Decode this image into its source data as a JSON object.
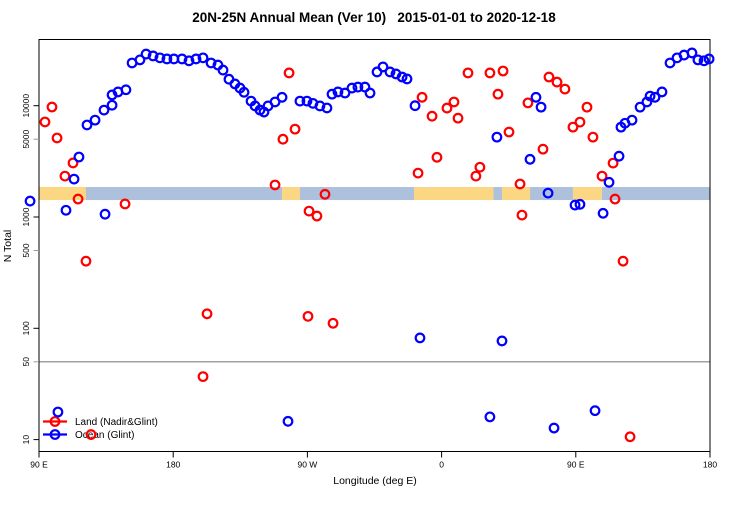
{
  "chart_data": {
    "type": "scatter",
    "title": "20N-25N Annual Mean (Ver 10)   2015-01-01 to 2020-12-18",
    "xlabel": "Longitude (deg E)",
    "ylabel": "N Total",
    "x_axis": {
      "range": [
        90,
        540
      ],
      "ticks": [
        90,
        180,
        270,
        360,
        450,
        540
      ],
      "tick_labels": [
        "90 E",
        "180",
        "90 W",
        "0",
        "90 E",
        "180"
      ]
    },
    "y_axis": {
      "scale": "log",
      "range": [
        7.5,
        39000
      ],
      "ticks": [
        10,
        50,
        100,
        500,
        1000,
        5000,
        10000
      ],
      "tick_labels": [
        "10",
        "50",
        "100",
        "500",
        "1000",
        "5000",
        "10000"
      ],
      "gray_ticks": [
        50,
        500,
        5000
      ],
      "major_tick_color": "#000000",
      "minor_tick_color": "#9a9a9a"
    },
    "grid": "off",
    "legend_position": "bottom-left",
    "ref_line": {
      "value": 50,
      "color": "#808080"
    },
    "band": {
      "value_top": 1860,
      "value_bottom": 1420,
      "orange_color": "#FBD683",
      "blue_color": "#AEC1DC",
      "segments": [
        {
          "from": 90,
          "to": 121.5,
          "color": "#FBD683"
        },
        {
          "from": 121.5,
          "to": 253,
          "color": "#AEC1DC"
        },
        {
          "from": 253,
          "to": 265,
          "color": "#FBD683"
        },
        {
          "from": 265,
          "to": 341.5,
          "color": "#AEC1DC"
        },
        {
          "from": 341.5,
          "to": 394.8,
          "color": "#FBD683"
        },
        {
          "from": 394.8,
          "to": 400.5,
          "color": "#AEC1DC"
        },
        {
          "from": 400.5,
          "to": 419.3,
          "color": "#FBD683"
        },
        {
          "from": 419.3,
          "to": 448.1,
          "color": "#AEC1DC"
        },
        {
          "from": 448.1,
          "to": 467.5,
          "color": "#FBD683"
        },
        {
          "from": 467.5,
          "to": 540,
          "color": "#AEC1DC"
        }
      ]
    },
    "series": [
      {
        "id": "land",
        "name": "Land (Nadir&Glint)",
        "color": "#FF0000",
        "marker": "open-circle",
        "points": [
          [
            98.7,
            9730
          ],
          [
            94.0,
            7140
          ],
          [
            102.1,
            5130
          ],
          [
            112.8,
            3060
          ],
          [
            107.4,
            2330
          ],
          [
            116.2,
            1450
          ],
          [
            147.7,
            1310
          ],
          [
            121.5,
            401
          ],
          [
            124.9,
            11.1
          ],
          [
            200.0,
            36.8
          ],
          [
            202.7,
            135
          ],
          [
            248.3,
            1940
          ],
          [
            253.6,
            5000
          ],
          [
            257.7,
            19700
          ],
          [
            261.7,
            6160
          ],
          [
            271.1,
            1130
          ],
          [
            276.4,
            1020
          ],
          [
            270.4,
            128
          ],
          [
            281.8,
            1600
          ],
          [
            287.2,
            111
          ],
          [
            344.2,
            2480
          ],
          [
            346.9,
            11900
          ],
          [
            353.6,
            8050
          ],
          [
            356.9,
            3440
          ],
          [
            363.6,
            9520
          ],
          [
            368.3,
            10800
          ],
          [
            371.0,
            7730
          ],
          [
            377.7,
            19700
          ],
          [
            383.0,
            2330
          ],
          [
            385.7,
            2800
          ],
          [
            392.4,
            19700
          ],
          [
            397.8,
            12700
          ],
          [
            401.2,
            20500
          ],
          [
            405.2,
            5800
          ],
          [
            412.6,
            1980
          ],
          [
            413.9,
            1040
          ],
          [
            417.9,
            10600
          ],
          [
            428.0,
            4070
          ],
          [
            432.0,
            18100
          ],
          [
            437.4,
            16300
          ],
          [
            442.7,
            14100
          ],
          [
            448.1,
            6420
          ],
          [
            452.8,
            7120
          ],
          [
            457.5,
            9710
          ],
          [
            461.5,
            5220
          ],
          [
            467.6,
            2330
          ],
          [
            475.0,
            3050
          ],
          [
            476.3,
            1450
          ],
          [
            481.7,
            401
          ],
          [
            486.4,
            10.6
          ]
        ]
      },
      {
        "id": "ocean",
        "name": "Ocean (Glint)",
        "color": "#0000FF",
        "marker": "open-circle",
        "points": [
          [
            84.0,
            1390
          ],
          [
            108.1,
            1150
          ],
          [
            134.3,
            1060
          ],
          [
            113.5,
            2190
          ],
          [
            116.8,
            3460
          ],
          [
            122.2,
            6710
          ],
          [
            127.6,
            7420
          ],
          [
            133.6,
            9130
          ],
          [
            139.0,
            10100
          ],
          [
            139.0,
            12500
          ],
          [
            143.0,
            13300
          ],
          [
            148.3,
            13900
          ],
          [
            152.4,
            24200
          ],
          [
            157.7,
            25800
          ],
          [
            161.8,
            29100
          ],
          [
            166.5,
            28000
          ],
          [
            171.1,
            26900
          ],
          [
            175.8,
            26300
          ],
          [
            180.5,
            26300
          ],
          [
            185.9,
            26300
          ],
          [
            190.6,
            25300
          ],
          [
            195.3,
            26300
          ],
          [
            200.0,
            26900
          ],
          [
            205.4,
            24200
          ],
          [
            210.0,
            23200
          ],
          [
            213.4,
            20900
          ],
          [
            217.4,
            17300
          ],
          [
            221.4,
            15700
          ],
          [
            224.8,
            14400
          ],
          [
            227.5,
            13200
          ],
          [
            232.2,
            11000
          ],
          [
            234.9,
            9950
          ],
          [
            238.2,
            9140
          ],
          [
            240.9,
            8770
          ],
          [
            243.6,
            9950
          ],
          [
            248.3,
            10800
          ],
          [
            253.0,
            11900
          ],
          [
            265.0,
            11000
          ],
          [
            269.7,
            11000
          ],
          [
            273.7,
            10500
          ],
          [
            278.4,
            9950
          ],
          [
            283.1,
            9540
          ],
          [
            286.5,
            12700
          ],
          [
            290.5,
            13300
          ],
          [
            295.2,
            13000
          ],
          [
            299.9,
            14400
          ],
          [
            303.9,
            14700
          ],
          [
            308.6,
            14700
          ],
          [
            312.0,
            13000
          ],
          [
            316.7,
            20100
          ],
          [
            320.7,
            22300
          ],
          [
            325.4,
            20100
          ],
          [
            329.4,
            19300
          ],
          [
            333.5,
            18100
          ],
          [
            336.8,
            17400
          ],
          [
            342.2,
            10000
          ],
          [
            345.5,
            82
          ],
          [
            397.1,
            5220
          ],
          [
            400.5,
            77
          ],
          [
            392.4,
            16.0
          ],
          [
            419.3,
            3300
          ],
          [
            423.3,
            11900
          ],
          [
            426.7,
            9710
          ],
          [
            431.4,
            1640
          ],
          [
            435.4,
            12.7
          ],
          [
            449.5,
            1280
          ],
          [
            452.8,
            1300
          ],
          [
            462.9,
            18.2
          ],
          [
            468.3,
            1080
          ],
          [
            472.3,
            2050
          ],
          [
            479.0,
            3520
          ],
          [
            480.3,
            6420
          ],
          [
            483.0,
            6960
          ],
          [
            487.7,
            7420
          ],
          [
            493.1,
            9710
          ],
          [
            497.7,
            10800
          ],
          [
            499.8,
            12200
          ],
          [
            503.1,
            11900
          ],
          [
            507.8,
            13300
          ],
          [
            513.2,
            24200
          ],
          [
            517.9,
            26900
          ],
          [
            522.6,
            28500
          ],
          [
            527.9,
            29800
          ],
          [
            531.9,
            25800
          ],
          [
            536.0,
            25300
          ],
          [
            539.4,
            26300
          ],
          [
            257.0,
            14.6
          ],
          [
            102.7,
            17.7
          ]
        ]
      }
    ]
  }
}
